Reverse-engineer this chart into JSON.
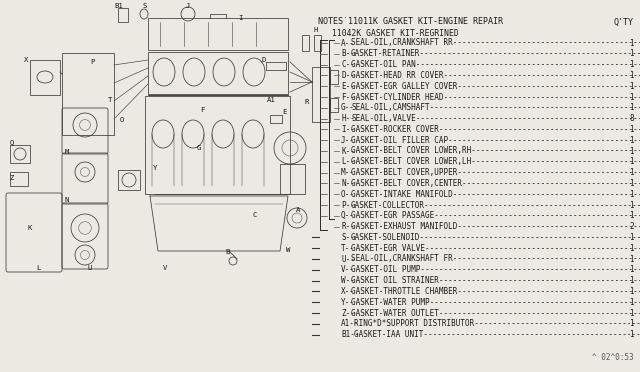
{
  "title_notes": "NOTES˙11011K GASKET KIT-ENGINE REPAIR",
  "qty_label": "Q'TY",
  "subtitle": "11042K GASKET KIT-REGRINED",
  "bg_color": "#ece9e2",
  "text_color": "#1a1a1a",
  "font_family": "monospace",
  "watermark": "^ 02^0:53",
  "parts": [
    {
      "code": "A",
      "desc": "SEAL-OIL,CRANKSHAFT RR",
      "qty": "1"
    },
    {
      "code": "B",
      "desc": "GASKET-RETAINER",
      "qty": "1"
    },
    {
      "code": "C",
      "desc": "GASKET-OIL PAN",
      "qty": "1"
    },
    {
      "code": "D",
      "desc": "GASKET-HEAD RR COVER",
      "qty": "1"
    },
    {
      "code": "E",
      "desc": "GASKET-EGR GALLEY COVER",
      "qty": "1"
    },
    {
      "code": "F",
      "desc": "GASKET-CYLINDER HEAD",
      "qty": "1"
    },
    {
      "code": "G",
      "desc": "SEAL-OIL,CAMSHAFT",
      "qty": "1"
    },
    {
      "code": "H",
      "desc": "SEAL-OIL,VALVE",
      "qty": "8"
    },
    {
      "code": "I",
      "desc": "GASKET-ROCKER COVER",
      "qty": "1"
    },
    {
      "code": "J",
      "desc": "GASKET-OIL FILLER CAP",
      "qty": "1"
    },
    {
      "code": "K",
      "desc": "GASKET-BELT COVER LOWER,RH",
      "qty": "1"
    },
    {
      "code": "L",
      "desc": "GASKET-BELT COVER LOWER,LH",
      "qty": "1"
    },
    {
      "code": "M",
      "desc": "GASKET-BELT COVER,UPPER",
      "qty": "1"
    },
    {
      "code": "N",
      "desc": "GASKET-BELT COVER,CENTER",
      "qty": "1"
    },
    {
      "code": "O",
      "desc": "GASKET-INTAKE MANIFOLD",
      "qty": "1"
    },
    {
      "code": "P",
      "desc": "GASKET-COLLECTOR",
      "qty": "1"
    },
    {
      "code": "Q",
      "desc": "GASKET-EGR PASSAGE",
      "qty": "1"
    },
    {
      "code": "R",
      "desc": "GASKET-EXHAUST MANIFOLD",
      "qty": "2"
    },
    {
      "code": "S",
      "desc": "GASKET-SOLENOID",
      "qty": "1"
    },
    {
      "code": "T",
      "desc": "GASKET-EGR VALVE",
      "qty": "1"
    },
    {
      "code": "U",
      "desc": "SEAL-OIL,CRANKSHAFT FR",
      "qty": "1"
    },
    {
      "code": "V",
      "desc": "GASKET-OIL PUMP",
      "qty": "1"
    },
    {
      "code": "W",
      "desc": "GASKET OIL STRAINER",
      "qty": "1"
    },
    {
      "code": "X",
      "desc": "GASKET-THROTTLE CHAMBER",
      "qty": "1"
    },
    {
      "code": "Y",
      "desc": "GASKET-WATER PUMP",
      "qty": "1"
    },
    {
      "code": "Z",
      "desc": "GASKET-WATER OUTLET",
      "qty": "1"
    },
    {
      "code": "A1",
      "desc": "RING*D*SUPPORT DISTRIBUTOR",
      "qty": "1"
    },
    {
      "code": "B1",
      "desc": "GASKET-IAA UNIT",
      "qty": "1"
    }
  ],
  "bracket_entries": [
    "A",
    "B",
    "C",
    "D",
    "E",
    "F",
    "G",
    "H",
    "I",
    "J",
    "K",
    "L",
    "M",
    "N",
    "O",
    "P",
    "Q",
    "R"
  ],
  "fig_width": 6.4,
  "fig_height": 3.72,
  "dpi": 100
}
